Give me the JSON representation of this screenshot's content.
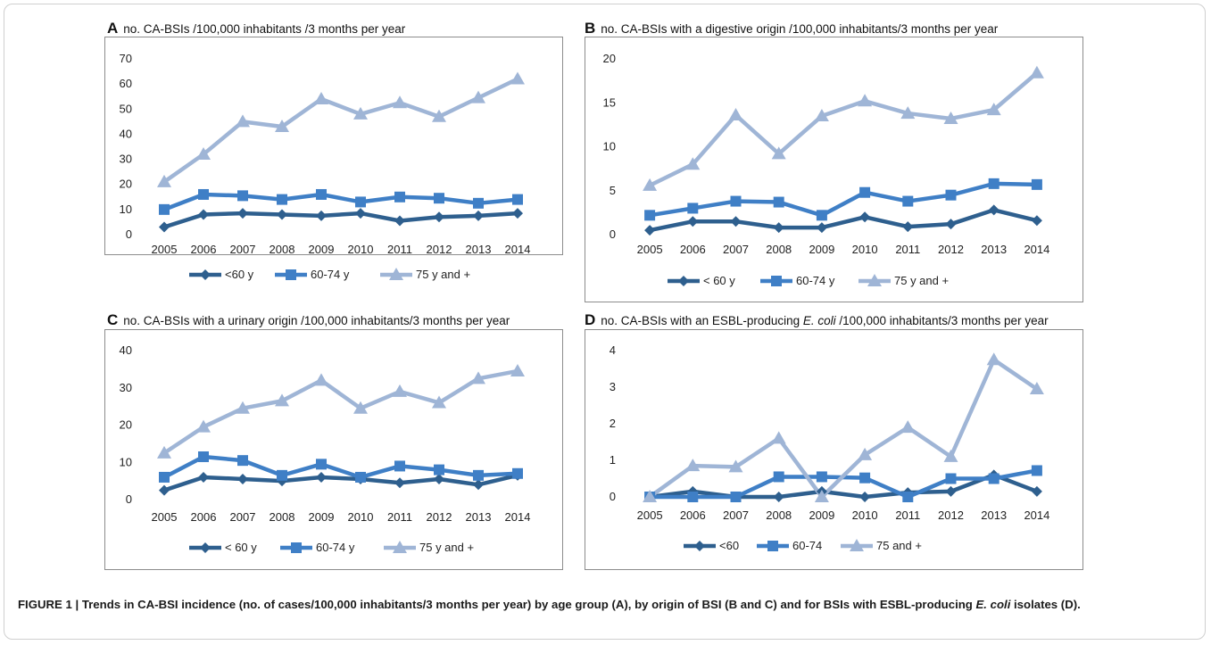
{
  "figure": {
    "caption_label": "FIGURE 1 |",
    "caption_text_1": " Trends in CA-BSI incidence (no. of cases/100,000 inhabitants/3 months per year) by age group (A), by origin of BSI (B and C) and for BSIs with ESBL-producing ",
    "caption_italic": "E. coli",
    "caption_text_2": " isolates (D)."
  },
  "colors": {
    "lt60": "#2e5f8e",
    "mid": "#3f7fc6",
    "ge75": "#9fb5d6",
    "grid": "#d9d9d9",
    "border": "#8c8c8c"
  },
  "chart_data": [
    {
      "type": "line",
      "letter": "A",
      "title_pre": "no. CA-BSIs /100,000 inhabitants /3 months per year",
      "title_italic": "",
      "title_post": "",
      "x": [
        "2005",
        "2006",
        "2007",
        "2008",
        "2009",
        "2010",
        "2011",
        "2012",
        "2013",
        "2014"
      ],
      "ylim": [
        0,
        70
      ],
      "yticks": [
        "0",
        "10",
        "20",
        "30",
        "40",
        "50",
        "60",
        "70"
      ],
      "series": [
        {
          "name": "<60 y",
          "marker": "diamond",
          "color": "#2e5f8e",
          "values": [
            3,
            8,
            8.5,
            8,
            7.5,
            8.5,
            5.5,
            7,
            7.5,
            8.5
          ]
        },
        {
          "name": "60-74 y",
          "marker": "square",
          "color": "#3f7fc6",
          "values": [
            10,
            16,
            15.5,
            14,
            16,
            13,
            15,
            14.5,
            12.5,
            14
          ]
        },
        {
          "name": "75 y and +",
          "marker": "triangle",
          "color": "#9fb5d6",
          "values": [
            21,
            32,
            45,
            43,
            54,
            48,
            52.5,
            47,
            54.5,
            62
          ]
        }
      ],
      "legend": "bottom"
    },
    {
      "type": "line",
      "letter": "B",
      "title_pre": "no. CA-BSIs with a digestive origin /100,000 inhabitants/3 months per year",
      "title_italic": "",
      "title_post": "",
      "x": [
        "2005",
        "2006",
        "2007",
        "2008",
        "2009",
        "2010",
        "2011",
        "2012",
        "2013",
        "2014"
      ],
      "ylim": [
        0,
        20
      ],
      "yticks": [
        "0",
        "5",
        "10",
        "15",
        "20"
      ],
      "series": [
        {
          "name": "< 60 y",
          "marker": "diamond",
          "color": "#2e5f8e",
          "values": [
            0.5,
            1.5,
            1.5,
            0.8,
            0.8,
            2,
            0.9,
            1.2,
            2.8,
            1.6
          ]
        },
        {
          "name": "60-74 y",
          "marker": "square",
          "color": "#3f7fc6",
          "values": [
            2.2,
            3,
            3.8,
            3.7,
            2.2,
            4.8,
            3.8,
            4.5,
            5.8,
            5.7
          ]
        },
        {
          "name": "75 y and +",
          "marker": "triangle",
          "color": "#9fb5d6",
          "values": [
            5.6,
            8,
            13.6,
            9.2,
            13.5,
            15.2,
            13.8,
            13.2,
            14.2,
            18.4
          ]
        }
      ],
      "legend": "bottom"
    },
    {
      "type": "line",
      "letter": "C",
      "title_pre": "no. CA-BSIs with a urinary origin /100,000 inhabitants/3 months per year",
      "title_italic": "",
      "title_post": "",
      "x": [
        "2005",
        "2006",
        "2007",
        "2008",
        "2009",
        "2010",
        "2011",
        "2012",
        "2013",
        "2014"
      ],
      "ylim": [
        0,
        40
      ],
      "yticks": [
        "0",
        "10",
        "20",
        "30",
        "40"
      ],
      "series": [
        {
          "name": "< 60 y",
          "marker": "diamond",
          "color": "#2e5f8e",
          "values": [
            2.5,
            6,
            5.5,
            5,
            6,
            5.5,
            4.5,
            5.5,
            4,
            6.5
          ]
        },
        {
          "name": "60-74 y",
          "marker": "square",
          "color": "#3f7fc6",
          "values": [
            6,
            11.5,
            10.5,
            6.5,
            9.5,
            6,
            9,
            8,
            6.5,
            7
          ]
        },
        {
          "name": "75 y and +",
          "marker": "triangle",
          "color": "#9fb5d6",
          "values": [
            12.5,
            19.5,
            24.5,
            26.5,
            32,
            24.5,
            29,
            26,
            32.5,
            34.5
          ]
        }
      ],
      "legend": "bottom"
    },
    {
      "type": "line",
      "letter": "D",
      "title_pre": "no. CA-BSIs with an ESBL-producing ",
      "title_italic": "E. coli",
      "title_post": " /100,000 inhabitants/3 months per year",
      "x": [
        "2005",
        "2006",
        "2007",
        "2008",
        "2009",
        "2010",
        "2011",
        "2012",
        "2013",
        "2014"
      ],
      "ylim": [
        0,
        4
      ],
      "yticks": [
        "0",
        "1",
        "2",
        "3",
        "4"
      ],
      "series": [
        {
          "name": "<60",
          "marker": "diamond",
          "color": "#2e5f8e",
          "values": [
            0,
            0.15,
            0,
            0,
            0.15,
            0,
            0.12,
            0.15,
            0.6,
            0.15
          ]
        },
        {
          "name": "60-74",
          "marker": "square",
          "color": "#3f7fc6",
          "values": [
            0,
            0,
            0,
            0.55,
            0.55,
            0.52,
            0,
            0.5,
            0.5,
            0.72
          ]
        },
        {
          "name": "75 and +",
          "marker": "triangle",
          "color": "#9fb5d6",
          "values": [
            0,
            0.85,
            0.82,
            1.6,
            0,
            1.15,
            1.9,
            1.1,
            3.75,
            2.95
          ]
        }
      ],
      "legend": "bottom"
    }
  ]
}
